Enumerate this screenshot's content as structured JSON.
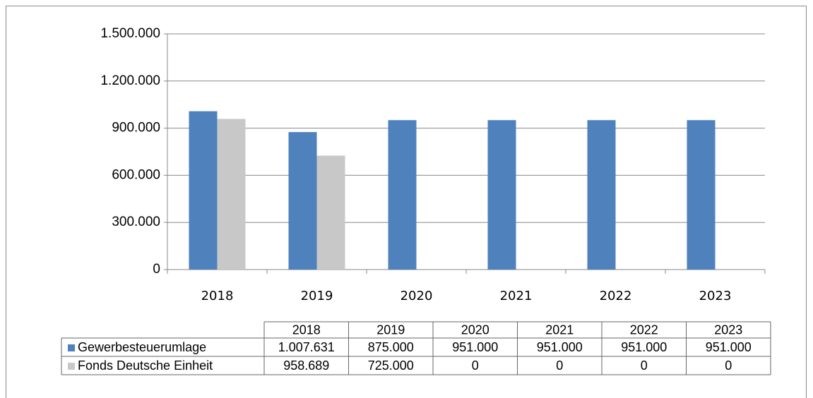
{
  "chart_data": {
    "type": "bar",
    "categories": [
      "2018",
      "2019",
      "2020",
      "2021",
      "2022",
      "2023"
    ],
    "series": [
      {
        "name": "Gewerbesteuerumlage",
        "color": "#4f81bd",
        "values": [
          1007631,
          875000,
          951000,
          951000,
          951000,
          951000
        ],
        "value_labels": [
          "1.007.631",
          "875.000",
          "951.000",
          "951.000",
          "951.000",
          "951.000"
        ]
      },
      {
        "name": "Fonds Deutsche Einheit",
        "color": "#c8c8c8",
        "values": [
          958689,
          725000,
          0,
          0,
          0,
          0
        ],
        "value_labels": [
          "958.689",
          "725.000",
          "0",
          "0",
          "0",
          "0"
        ]
      }
    ],
    "ylim": [
      0,
      1500000
    ],
    "yticks": [
      0,
      {
        "value": 300000,
        "label": "300.000"
      },
      {
        "value": 600000,
        "label": "600.000"
      },
      {
        "value": 900000,
        "label": "900.000"
      },
      {
        "value": 1200000,
        "label": "1.200.000"
      },
      {
        "value": 1500000,
        "label": "1.500.000"
      }
    ],
    "grid": true,
    "data_table": true
  }
}
